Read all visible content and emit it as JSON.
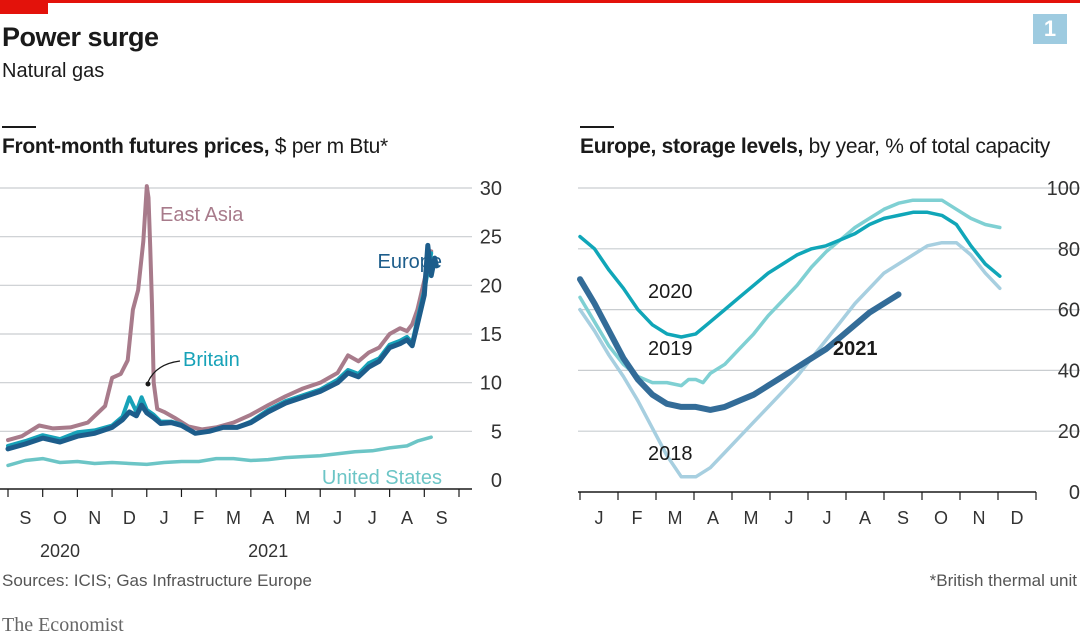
{
  "header": {
    "title": "Power surge",
    "subtitle": "Natural gas",
    "badge": "1",
    "accent": "#e3120b",
    "badge_color": "#9ecbe0"
  },
  "footer": {
    "sources": "Sources: ICIS; Gas Infrastructure Europe",
    "note": "*British thermal unit",
    "brand": "The Economist"
  },
  "chart_data": [
    {
      "type": "line",
      "title_bold": "Front-month futures prices,",
      "title_rest": " $ per m Btu*",
      "yticks": [
        0,
        5,
        10,
        15,
        20,
        25,
        30
      ],
      "ylim": [
        0,
        30
      ],
      "xlim": [
        0,
        13
      ],
      "month_labels": [
        "S",
        "O",
        "N",
        "D",
        "J",
        "F",
        "M",
        "A",
        "M",
        "J",
        "J",
        "A",
        "S"
      ],
      "year_labels": [
        {
          "text": "2020",
          "x": 2
        },
        {
          "text": "2021",
          "x": 8
        }
      ],
      "series": [
        {
          "name": "East Asia",
          "color": "#a87b8b",
          "width": 4,
          "x": [
            0,
            0.4,
            0.9,
            1.3,
            1.8,
            2.3,
            2.8,
            3.0,
            3.25,
            3.45,
            3.6,
            3.75,
            3.9,
            4.0,
            4.05,
            4.1,
            4.15,
            4.2,
            4.3,
            4.5,
            4.8,
            5.2,
            5.6,
            6.0,
            6.5,
            7.0,
            7.5,
            8.0,
            8.5,
            9.0,
            9.5,
            9.8,
            10.1,
            10.4,
            10.7,
            11.0,
            11.3,
            11.5,
            11.65,
            11.8,
            12.0,
            12.2
          ],
          "y": [
            4.1,
            4.5,
            5.6,
            5.3,
            5.4,
            5.9,
            7.6,
            10.5,
            10.9,
            12.3,
            17.5,
            19.5,
            24.5,
            30.2,
            29.0,
            24.0,
            18.0,
            10.0,
            7.3,
            7.0,
            6.4,
            5.5,
            5.2,
            5.4,
            5.9,
            6.7,
            7.7,
            8.6,
            9.4,
            10.0,
            11.0,
            12.8,
            12.2,
            13.1,
            13.6,
            15.0,
            15.6,
            15.3,
            16.0,
            17.5,
            20.5,
            23.5
          ]
        },
        {
          "name": "Britain",
          "color": "#17a2b8",
          "width": 4,
          "x": [
            0,
            0.5,
            1.0,
            1.5,
            2.0,
            2.5,
            3.0,
            3.3,
            3.5,
            3.7,
            3.85,
            4.0,
            4.2,
            4.4,
            4.7,
            5.0,
            5.4,
            5.8,
            6.2,
            6.6,
            7.0,
            7.5,
            8.0,
            8.5,
            9.0,
            9.5,
            9.8,
            10.1,
            10.4,
            10.7,
            11.0,
            11.3,
            11.5,
            11.65,
            11.8,
            12.0,
            12.2
          ],
          "y": [
            3.5,
            4.0,
            4.6,
            4.2,
            4.9,
            5.1,
            5.6,
            6.5,
            8.5,
            7.0,
            8.5,
            7.2,
            6.7,
            6.0,
            6.0,
            5.7,
            4.8,
            5.0,
            5.4,
            5.4,
            6.0,
            7.2,
            8.1,
            8.7,
            9.3,
            10.3,
            11.3,
            10.9,
            12.0,
            12.5,
            13.9,
            14.3,
            14.7,
            14.1,
            16.5,
            19.5,
            23.3
          ]
        },
        {
          "name": "Europe",
          "color": "#1d5d8b",
          "width": 5,
          "x": [
            0,
            0.5,
            1.0,
            1.5,
            2.0,
            2.5,
            3.0,
            3.3,
            3.5,
            3.7,
            3.85,
            4.0,
            4.2,
            4.4,
            4.7,
            5.0,
            5.4,
            5.8,
            6.2,
            6.6,
            7.0,
            7.5,
            8.0,
            8.5,
            9.0,
            9.5,
            9.8,
            10.1,
            10.4,
            10.7,
            11.0,
            11.3,
            11.5,
            11.65,
            11.8,
            12.0,
            12.1,
            12.2,
            12.3,
            12.35
          ],
          "y": [
            3.2,
            3.7,
            4.3,
            3.9,
            4.5,
            4.8,
            5.4,
            6.2,
            7.0,
            6.6,
            7.7,
            6.9,
            6.4,
            5.8,
            5.9,
            5.6,
            4.8,
            5.0,
            5.4,
            5.4,
            5.9,
            7.0,
            7.9,
            8.5,
            9.1,
            10.0,
            11.0,
            10.6,
            11.6,
            12.2,
            13.6,
            14.0,
            14.4,
            13.8,
            16.0,
            19.0,
            24.1,
            21.0,
            22.8,
            22.0
          ]
        },
        {
          "name": "United States",
          "color": "#6cc5c6",
          "width": 3.5,
          "x": [
            0,
            0.5,
            1.0,
            1.5,
            2.0,
            2.5,
            3.0,
            3.5,
            4.0,
            4.5,
            5.0,
            5.5,
            6.0,
            6.5,
            7.0,
            7.5,
            8.0,
            8.5,
            9.0,
            9.5,
            10.0,
            10.5,
            11.0,
            11.5,
            11.8,
            12.2
          ],
          "y": [
            1.5,
            2.0,
            2.2,
            1.8,
            1.9,
            1.7,
            1.8,
            1.7,
            1.6,
            1.8,
            1.9,
            1.9,
            2.2,
            2.2,
            2.0,
            2.1,
            2.3,
            2.4,
            2.5,
            2.7,
            2.9,
            3.0,
            3.3,
            3.5,
            4.0,
            4.4
          ]
        }
      ],
      "annotations": [
        {
          "text": "East Asia",
          "series": "East Asia"
        },
        {
          "text": "Europe",
          "series": "Europe"
        },
        {
          "text": "Britain",
          "series": "Britain"
        },
        {
          "text": "United States",
          "series": "United States"
        }
      ]
    },
    {
      "type": "line",
      "title_bold": "Europe, storage levels,",
      "title_rest": " by year, % of total capacity",
      "yticks": [
        0,
        20,
        40,
        60,
        80,
        100
      ],
      "ylim": [
        0,
        100
      ],
      "xlim": [
        0,
        12.6
      ],
      "month_labels": [
        "J",
        "F",
        "M",
        "A",
        "M",
        "J",
        "J",
        "A",
        "S",
        "O",
        "N",
        "D"
      ],
      "series": [
        {
          "name": "2018",
          "color": "#a7cfe0",
          "width": 3.5,
          "x": [
            0,
            0.4,
            0.8,
            1.2,
            1.6,
            2.0,
            2.4,
            2.8,
            3.2,
            3.6,
            4.0,
            4.4,
            4.8,
            5.2,
            5.6,
            6.0,
            6.4,
            6.8,
            7.2,
            7.6,
            8.0,
            8.4,
            8.8,
            9.2,
            9.6,
            10.0,
            10.4,
            10.8,
            11.2,
            11.6
          ],
          "y": [
            60,
            53,
            45,
            38,
            30,
            21,
            12,
            5,
            5,
            8,
            13,
            18,
            23,
            28,
            33,
            38,
            44,
            50,
            56,
            62,
            67,
            72,
            75,
            78,
            81,
            82,
            82,
            78,
            72,
            67
          ]
        },
        {
          "name": "2019",
          "color": "#7fd0d3",
          "width": 3.5,
          "x": [
            0,
            0.4,
            0.8,
            1.2,
            1.6,
            2.0,
            2.4,
            2.8,
            3.0,
            3.2,
            3.4,
            3.6,
            4.0,
            4.4,
            4.8,
            5.2,
            5.6,
            6.0,
            6.4,
            6.8,
            7.2,
            7.6,
            8.0,
            8.4,
            8.8,
            9.2,
            9.6,
            10.0,
            10.4,
            10.8,
            11.2,
            11.6
          ],
          "y": [
            64,
            56,
            48,
            42,
            38,
            36,
            36,
            35,
            37,
            37,
            36,
            39,
            42,
            47,
            52,
            58,
            63,
            68,
            74,
            79,
            83,
            87,
            90,
            93,
            95,
            96,
            96,
            96,
            93,
            90,
            88,
            87
          ]
        },
        {
          "name": "2020",
          "color": "#10a6b8",
          "width": 3.5,
          "x": [
            0,
            0.4,
            0.8,
            1.2,
            1.6,
            2.0,
            2.4,
            2.8,
            3.2,
            3.6,
            4.0,
            4.4,
            4.8,
            5.2,
            5.6,
            6.0,
            6.4,
            6.8,
            7.2,
            7.6,
            8.0,
            8.4,
            8.8,
            9.2,
            9.6,
            10.0,
            10.4,
            10.8,
            11.2,
            11.6
          ],
          "y": [
            84,
            80,
            73,
            67,
            60,
            55,
            52,
            51,
            52,
            56,
            60,
            64,
            68,
            72,
            75,
            78,
            80,
            81,
            83,
            85,
            88,
            90,
            91,
            92,
            92,
            91,
            88,
            81,
            75,
            71
          ]
        },
        {
          "name": "2021",
          "color": "#336c98",
          "width": 6,
          "x": [
            0,
            0.4,
            0.8,
            1.2,
            1.6,
            2.0,
            2.4,
            2.8,
            3.2,
            3.6,
            4.0,
            4.4,
            4.8,
            5.2,
            5.6,
            6.0,
            6.4,
            6.8,
            7.2,
            7.6,
            8.0,
            8.4,
            8.8
          ],
          "y": [
            70,
            62,
            53,
            44,
            37,
            32,
            29,
            28,
            28,
            27,
            28,
            30,
            32,
            35,
            38,
            41,
            44,
            47,
            51,
            55,
            59,
            62,
            65
          ]
        }
      ],
      "annotations": [
        {
          "text": "2020",
          "series": "2020"
        },
        {
          "text": "2019",
          "series": "2019"
        },
        {
          "text": "2021",
          "series": "2021"
        },
        {
          "text": "2018",
          "series": "2018"
        }
      ]
    }
  ]
}
